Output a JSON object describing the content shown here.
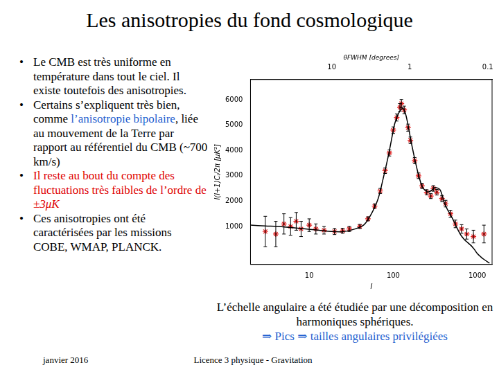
{
  "slide": {
    "title": "Les anisotropies du fond cosmologique",
    "bullets": [
      [
        {
          "text": "Le CMB est très uniforme en température dans tout le ciel. Il existe toutefois des anisotropies."
        }
      ],
      [
        {
          "text": "Certains s’expliquent très bien, comme "
        },
        {
          "text": "l’anisotropie bipolaire",
          "color": "#1f5fd0"
        },
        {
          "text": ", liée au mouvement de la Terre par rapport au référentiel du CMB (~700 km/s)"
        }
      ],
      [
        {
          "text": "Il reste au bout du compte des fluctuations très faibles de l’ordre de ",
          "color": "#e00000"
        },
        {
          "text": "±3μK",
          "color": "#e00000",
          "style": "italic"
        }
      ],
      [
        {
          "text": "Ces anisotropies ont été caractérisées par les missions COBE, WMAP, PLANCK."
        }
      ]
    ],
    "caption": [
      "L’échelle angulaire a été étudiée par une décomposition en harmoniques sphériques.",
      "⇒ Pics ⇒ tailles angulaires privilégiées"
    ],
    "caption_color": "#1f5fd0",
    "footer_left": "janvier 2016",
    "footer_center": "Licence 3 physique - Gravitation"
  },
  "chart_data": {
    "type": "scatter",
    "x_label": "l",
    "y_label": "l(l+1)Cₗ/2π [μK²]",
    "x2_label": "θFWHM [degrees]",
    "log": "x",
    "grid": false,
    "xlim": [
      2,
      1500
    ],
    "xticks": [
      10,
      100,
      1000
    ],
    "x2lim": [
      110,
      0.088
    ],
    "x2ticks": [
      10,
      1,
      0.1
    ],
    "ylim": [
      -500,
      6800
    ],
    "yticks": [
      1000,
      2000,
      3000,
      4000,
      5000,
      6000
    ],
    "series": [
      {
        "type": "line",
        "color": "#000000",
        "line_style": "solid",
        "x": [
          2,
          3,
          5,
          8,
          12,
          18,
          25,
          35,
          45,
          55,
          66,
          76,
          86,
          95,
          104,
          115,
          124,
          131,
          140,
          149,
          158,
          168,
          182,
          197,
          210,
          223,
          240,
          259,
          285,
          310,
          335,
          360,
          385,
          408,
          450,
          489,
          540,
          586,
          640,
          703,
          770,
          841,
          920,
          1000,
          1100,
          1200,
          1400
        ],
        "values": [
          1050,
          1020,
          980,
          920,
          860,
          800,
          790,
          900,
          1070,
          1500,
          2090,
          2900,
          3680,
          4400,
          5050,
          5450,
          5620,
          5660,
          5450,
          5050,
          4600,
          4140,
          3600,
          3110,
          2780,
          2550,
          2420,
          2360,
          2420,
          2530,
          2520,
          2450,
          2200,
          1900,
          1620,
          1410,
          1130,
          880,
          650,
          480,
          360,
          250,
          100,
          -70,
          -200,
          -300,
          -450
        ]
      },
      {
        "type": "scatter",
        "color": "#e02020",
        "marker": "star",
        "x": [
          3,
          4,
          5,
          6,
          7,
          8,
          10,
          12,
          15,
          20,
          25,
          30,
          40,
          50,
          60,
          70,
          80,
          90,
          100,
          110,
          120,
          125,
          135,
          150,
          160,
          180,
          200,
          220,
          250,
          280,
          300,
          330,
          380,
          420,
          480,
          550,
          650,
          750,
          900,
          1200
        ],
        "values": [
          800,
          700,
          1100,
          1000,
          1200,
          900,
          1050,
          900,
          850,
          800,
          830,
          900,
          1000,
          1300,
          1800,
          2400,
          3200,
          3900,
          4800,
          5300,
          5700,
          5850,
          5600,
          4900,
          4400,
          3600,
          3000,
          2600,
          2350,
          2200,
          2500,
          2350,
          2100,
          1900,
          1500,
          1100,
          900,
          700,
          600,
          700
        ],
        "errors": [
          600,
          500,
          400,
          350,
          350,
          300,
          250,
          200,
          150,
          120,
          100,
          100,
          80,
          80,
          90,
          100,
          110,
          120,
          130,
          140,
          150,
          160,
          150,
          140,
          130,
          120,
          110,
          100,
          100,
          100,
          110,
          110,
          120,
          130,
          140,
          150,
          170,
          200,
          250,
          350
        ]
      }
    ]
  }
}
